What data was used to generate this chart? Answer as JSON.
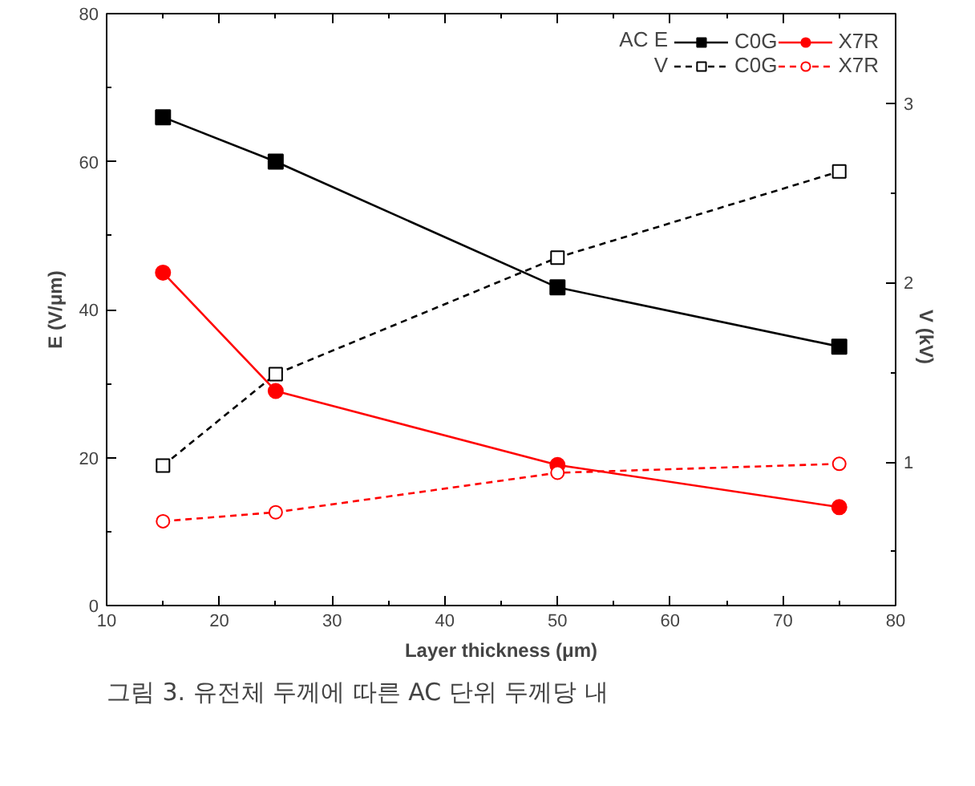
{
  "chart_data": {
    "type": "line",
    "x": [
      15,
      25,
      50,
      75
    ],
    "xlabel": "Layer thickness (μm)",
    "ylabel": "E (V/μm)",
    "y2label": "V (kV)",
    "xlim": [
      10,
      80
    ],
    "xticks": [
      10,
      20,
      30,
      40,
      50,
      60,
      70,
      80
    ],
    "ylim": [
      0,
      80
    ],
    "yticks": [
      0,
      20,
      40,
      60,
      80
    ],
    "y2lim": [
      0.2,
      3.5
    ],
    "y2ticks": [
      1,
      2,
      3
    ],
    "legend": "top right",
    "legend_title": "AC",
    "series": [
      {
        "name": "C0G",
        "color": "#000000",
        "values": [
          66,
          60,
          43,
          35
        ],
        "marker": "square",
        "line_style": "solid"
      },
      {
        "name": "X7R",
        "color": "#ff0000",
        "values": [
          45,
          29,
          19,
          13.3
        ],
        "marker": "circle",
        "line_style": "solid"
      },
      {
        "name": "C0G",
        "color": "#000000",
        "values": [
          0.98,
          1.49,
          2.14,
          2.62
        ],
        "marker": "square",
        "line_style": "dashed",
        "axis": "y2"
      },
      {
        "name": "X7R",
        "color": "#ff0000",
        "values": [
          0.67,
          0.72,
          0.94,
          0.99
        ],
        "marker": "circle",
        "line_style": "dashed",
        "axis": "y2"
      }
    ],
    "annotations": [
      "E",
      "V",
      "그림 3. 유전체 두께에 따른 AC 단위 두께당 내"
    ]
  }
}
